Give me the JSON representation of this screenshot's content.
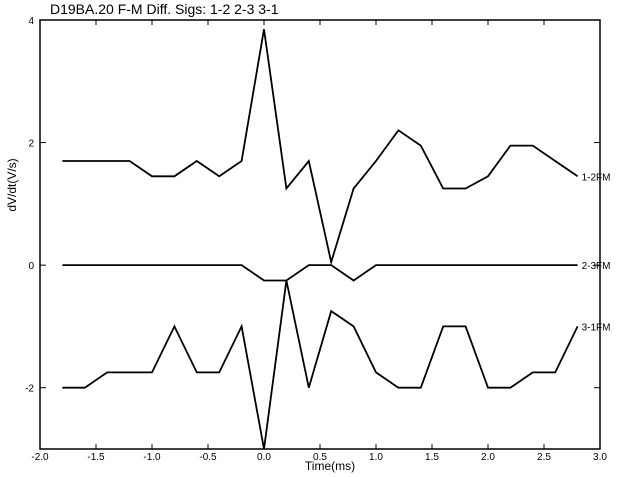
{
  "chart_data": {
    "type": "line",
    "title": "D19BA.20 F-M Diff. Sigs: 1-2  2-3  3-1",
    "xlabel": "Time(ms)",
    "ylabel": "dV/dt(V/s)",
    "xlim": [
      -2.0,
      3.0
    ],
    "ylim": [
      -3.0,
      4.0
    ],
    "x_ticks": [
      -2.0,
      -1.5,
      -1.0,
      -0.5,
      0.0,
      0.5,
      1.0,
      1.5,
      2.0,
      2.5,
      3.0
    ],
    "x_tick_labels": [
      "-2.0",
      "-1.5",
      "-1.0",
      "-0.5",
      "0.0",
      "0.5",
      "1.0",
      "1.5",
      "2.0",
      "2.5",
      "3.0"
    ],
    "y_ticks": [
      -2,
      0,
      2,
      4
    ],
    "y_tick_labels": [
      "-2",
      "0",
      "2",
      "4"
    ],
    "grid": false,
    "line_color": "#000000",
    "series": [
      {
        "name": "1-2FM",
        "x": [
          -1.8,
          -1.2,
          -1.0,
          -0.8,
          -0.6,
          -0.4,
          -0.2,
          0.0,
          0.2,
          0.4,
          0.6,
          0.8,
          1.0,
          1.2,
          1.4,
          1.6,
          1.8,
          2.0,
          2.2,
          2.4,
          2.6,
          2.8
        ],
        "y": [
          1.7,
          1.7,
          1.45,
          1.45,
          1.7,
          1.45,
          1.7,
          3.85,
          1.25,
          1.7,
          0.05,
          1.25,
          1.7,
          2.2,
          1.95,
          1.25,
          1.25,
          1.45,
          1.95,
          1.95,
          1.7,
          1.45
        ]
      },
      {
        "name": "2-3FM",
        "x": [
          -1.8,
          -1.6,
          -1.4,
          -1.2,
          -1.0,
          -0.8,
          -0.6,
          -0.4,
          -0.2,
          0.0,
          0.2,
          0.4,
          0.6,
          0.8,
          1.0,
          1.2,
          1.4,
          1.6,
          1.8,
          2.0,
          2.2,
          2.4,
          2.6,
          2.8
        ],
        "y": [
          0,
          0,
          0,
          0,
          0,
          0,
          0,
          0,
          0,
          -0.25,
          -0.25,
          0,
          0,
          -0.25,
          0,
          0,
          0,
          0,
          0,
          0,
          0,
          0,
          0,
          0
        ]
      },
      {
        "name": "3-1FM",
        "x": [
          -1.8,
          -1.6,
          -1.4,
          -1.2,
          -1.0,
          -0.8,
          -0.6,
          -0.4,
          -0.2,
          0.0,
          0.2,
          0.4,
          0.6,
          0.8,
          1.0,
          1.2,
          1.4,
          1.6,
          1.8,
          2.0,
          2.2,
          2.4,
          2.6,
          2.8
        ],
        "y": [
          -2.0,
          -2.0,
          -1.75,
          -1.75,
          -1.75,
          -1.0,
          -1.75,
          -1.75,
          -1.0,
          -3.0,
          -0.25,
          -2.0,
          -0.75,
          -1.0,
          -1.75,
          -2.0,
          -2.0,
          -1.0,
          -1.0,
          -2.0,
          -2.0,
          -1.75,
          -1.75,
          -1.0
        ]
      }
    ]
  }
}
